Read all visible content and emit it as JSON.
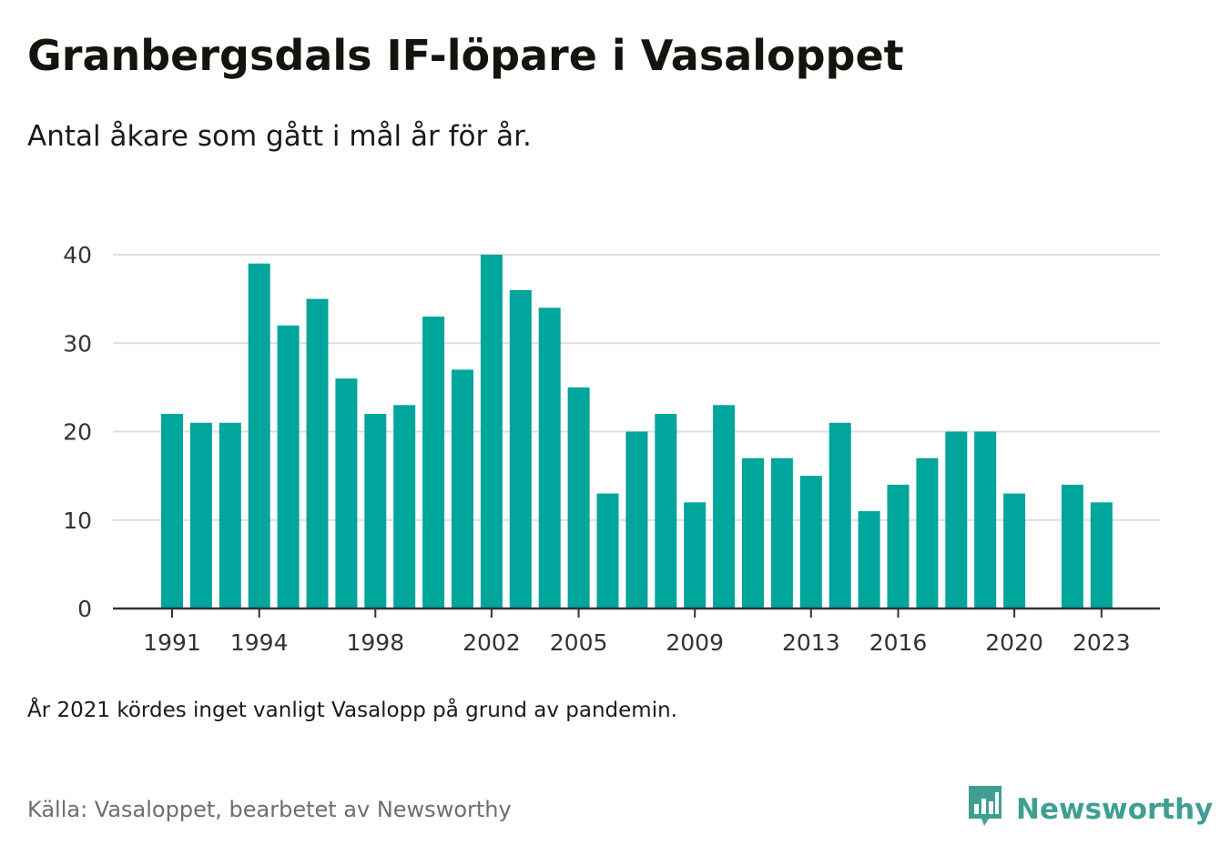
{
  "header": {
    "title": "Granbergsdals IF-löpare i Vasaloppet",
    "subtitle": "Antal åkare som gått i mål år för år."
  },
  "footer": {
    "note": "År 2021 kördes inget vanligt Vasalopp på grund av pandemin.",
    "source": "Källa: Vasaloppet, bearbetet av Newsworthy",
    "brand": "Newsworthy",
    "brand_icon": "bar-chart-speech-bubble-icon",
    "brand_color": "#3f9f92"
  },
  "chart_data": {
    "type": "bar",
    "title": "Granbergsdals IF-löpare i Vasaloppet",
    "subtitle": "Antal åkare som gått i mål år för år.",
    "xlabel": "",
    "ylabel": "",
    "categories": [
      1991,
      1992,
      1993,
      1994,
      1995,
      1996,
      1997,
      1998,
      1999,
      2000,
      2001,
      2002,
      2003,
      2004,
      2005,
      2006,
      2007,
      2008,
      2009,
      2010,
      2011,
      2012,
      2013,
      2014,
      2015,
      2016,
      2017,
      2018,
      2019,
      2020,
      2021,
      2022,
      2023
    ],
    "values": [
      22,
      21,
      21,
      39,
      32,
      35,
      26,
      22,
      23,
      33,
      27,
      40,
      36,
      34,
      25,
      13,
      20,
      22,
      12,
      23,
      17,
      17,
      15,
      21,
      11,
      14,
      17,
      20,
      20,
      13,
      null,
      14,
      12
    ],
    "x_tick_labels": [
      "1991",
      "1994",
      "1998",
      "2002",
      "2005",
      "2009",
      "2013",
      "2016",
      "2020",
      "2023"
    ],
    "y_ticks": [
      0,
      10,
      20,
      30,
      40
    ],
    "ylim": [
      0,
      40
    ],
    "grid": true,
    "legend": "none",
    "bar_color": "#00a59b"
  }
}
